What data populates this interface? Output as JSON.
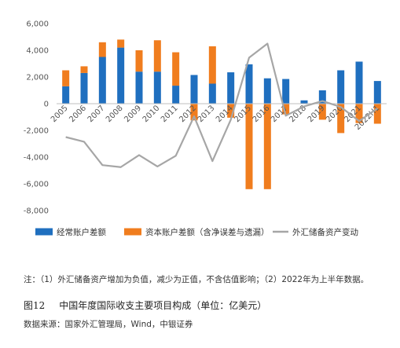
{
  "chart_data": {
    "type": "bar",
    "stacked": true,
    "categories": [
      "2005",
      "2006",
      "2007",
      "2008",
      "2009",
      "2010",
      "2011",
      "2012",
      "2013",
      "2014",
      "2015",
      "2016",
      "2017",
      "2018",
      "2019",
      "2020",
      "2021",
      "2022H1"
    ],
    "series": [
      {
        "name": "经常账户差额",
        "type": "bar",
        "color": "#1f6fbf",
        "values": [
          1300,
          2300,
          3500,
          4200,
          2400,
          2400,
          1350,
          2150,
          1500,
          2350,
          2950,
          1900,
          1850,
          250,
          1000,
          2500,
          3150,
          1700
        ]
      },
      {
        "name": "资本账户差额（含净误差与遗漏）",
        "type": "bar",
        "color": "#f07d1e",
        "values": [
          1200,
          500,
          1100,
          600,
          1600,
          2350,
          2500,
          -1250,
          2800,
          -1050,
          -6400,
          -6400,
          -800,
          0,
          -1200,
          -2200,
          -1450,
          -1500
        ]
      },
      {
        "name": "外汇储备资产变动",
        "type": "line",
        "color": "#a6a6a6",
        "values": [
          -2500,
          -2850,
          -4600,
          -4750,
          -3850,
          -4700,
          -3900,
          -950,
          -4300,
          -1200,
          3450,
          4500,
          -900,
          -200,
          200,
          -250,
          -1300,
          -350
        ]
      }
    ],
    "yticks": [
      -8000,
      -6000,
      -4000,
      -2000,
      0,
      2000,
      4000,
      6000
    ],
    "ytick_labels": [
      "-8,000",
      "-6,000",
      "-4,000",
      "-2,000",
      "0",
      "2,000",
      "4,000",
      "6,000"
    ],
    "ylim": [
      -8000,
      6000
    ],
    "legend_position": "bottom",
    "grid": false
  },
  "note": "注：（1）外汇储备资产增加为负值，减少为正值，不含估值影响；（2）2022年为上半年数据。",
  "figure": {
    "number": "图12",
    "title": "中国年度国际收支主要项目构成（单位：亿美元）"
  },
  "source": "数据来源：国家外汇管理局，Wind，中银证券"
}
